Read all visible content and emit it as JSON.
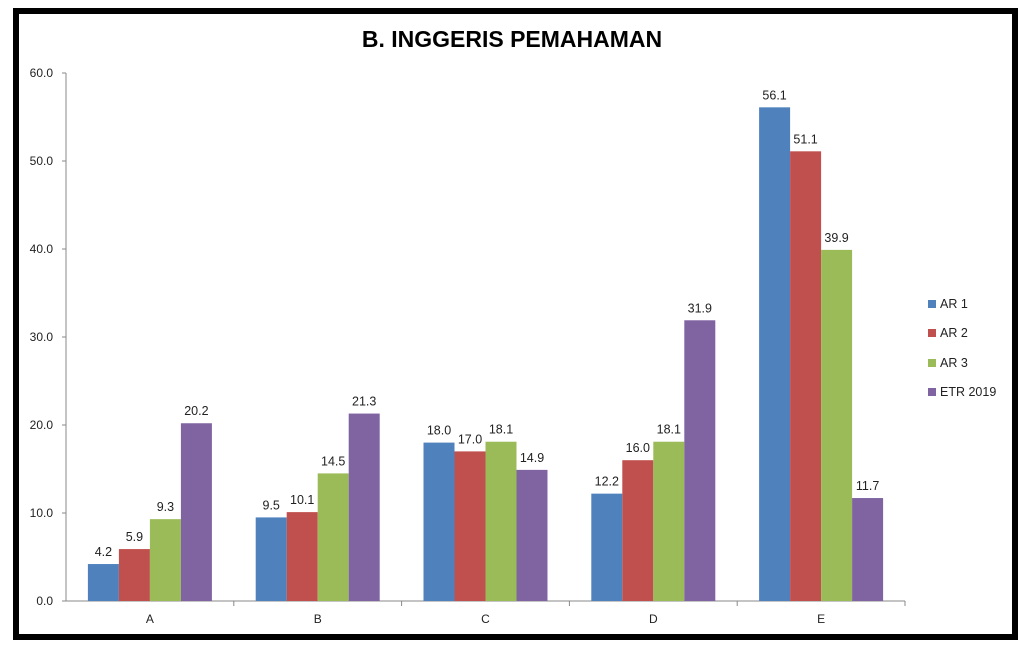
{
  "chart_data": {
    "type": "bar",
    "title": "B. INGGERIS PEMAHAMAN",
    "xlabel": "",
    "ylabel": "",
    "ylim": [
      0,
      60
    ],
    "yticks": [
      "0.0",
      "10.0",
      "20.0",
      "30.0",
      "40.0",
      "50.0",
      "60.0"
    ],
    "categories": [
      "A",
      "B",
      "C",
      "D",
      "E"
    ],
    "series": [
      {
        "name": "AR 1",
        "color": "#4f81bd",
        "values": [
          4.2,
          9.5,
          18.0,
          12.2,
          56.1
        ]
      },
      {
        "name": "AR 2",
        "color": "#c0504d",
        "values": [
          5.9,
          10.1,
          17.0,
          16.0,
          51.1
        ]
      },
      {
        "name": "AR 3",
        "color": "#9bbb59",
        "values": [
          9.3,
          14.5,
          18.1,
          18.1,
          39.9
        ]
      },
      {
        "name": "ETR 2019",
        "color": "#8064a2",
        "values": [
          20.2,
          21.3,
          14.9,
          31.9,
          11.7
        ]
      }
    ],
    "grid": false,
    "legend_position": "right"
  }
}
